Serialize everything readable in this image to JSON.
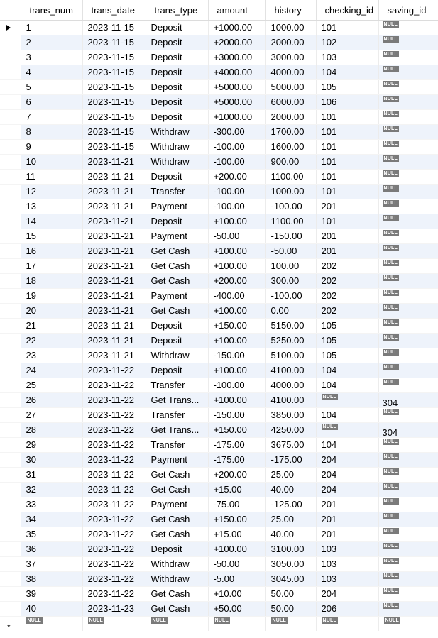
{
  "columns": [
    "trans_num",
    "trans_date",
    "trans_type",
    "amount",
    "history",
    "checking_id",
    "saving_id"
  ],
  "null_label": "NULL",
  "new_row_marker": "*",
  "rows": [
    [
      "1",
      "2023-11-15",
      "Deposit",
      "+1000.00",
      "1000.00",
      "101",
      null
    ],
    [
      "2",
      "2023-11-15",
      "Deposit",
      "+2000.00",
      "2000.00",
      "102",
      null
    ],
    [
      "3",
      "2023-11-15",
      "Deposit",
      "+3000.00",
      "3000.00",
      "103",
      null
    ],
    [
      "4",
      "2023-11-15",
      "Deposit",
      "+4000.00",
      "4000.00",
      "104",
      null
    ],
    [
      "5",
      "2023-11-15",
      "Deposit",
      "+5000.00",
      "5000.00",
      "105",
      null
    ],
    [
      "6",
      "2023-11-15",
      "Deposit",
      "+5000.00",
      "6000.00",
      "106",
      null
    ],
    [
      "7",
      "2023-11-15",
      "Deposit",
      "+1000.00",
      "2000.00",
      "101",
      null
    ],
    [
      "8",
      "2023-11-15",
      "Withdraw",
      "-300.00",
      "1700.00",
      "101",
      null
    ],
    [
      "9",
      "2023-11-15",
      "Withdraw",
      "-100.00",
      "1600.00",
      "101",
      null
    ],
    [
      "10",
      "2023-11-21",
      "Withdraw",
      "-100.00",
      "900.00",
      "101",
      null
    ],
    [
      "11",
      "2023-11-21",
      "Deposit",
      "+200.00",
      "1100.00",
      "101",
      null
    ],
    [
      "12",
      "2023-11-21",
      "Transfer",
      "-100.00",
      "1000.00",
      "101",
      null
    ],
    [
      "13",
      "2023-11-21",
      "Payment",
      "-100.00",
      "-100.00",
      "201",
      null
    ],
    [
      "14",
      "2023-11-21",
      "Deposit",
      "+100.00",
      "1100.00",
      "101",
      null
    ],
    [
      "15",
      "2023-11-21",
      "Payment",
      "-50.00",
      "-150.00",
      "201",
      null
    ],
    [
      "16",
      "2023-11-21",
      "Get Cash",
      "+100.00",
      "-50.00",
      "201",
      null
    ],
    [
      "17",
      "2023-11-21",
      "Get Cash",
      "+100.00",
      "100.00",
      "202",
      null
    ],
    [
      "18",
      "2023-11-21",
      "Get Cash",
      "+200.00",
      "300.00",
      "202",
      null
    ],
    [
      "19",
      "2023-11-21",
      "Payment",
      "-400.00",
      "-100.00",
      "202",
      null
    ],
    [
      "20",
      "2023-11-21",
      "Get Cash",
      "+100.00",
      "0.00",
      "202",
      null
    ],
    [
      "21",
      "2023-11-21",
      "Deposit",
      "+150.00",
      "5150.00",
      "105",
      null
    ],
    [
      "22",
      "2023-11-21",
      "Deposit",
      "+100.00",
      "5250.00",
      "105",
      null
    ],
    [
      "23",
      "2023-11-21",
      "Withdraw",
      "-150.00",
      "5100.00",
      "105",
      null
    ],
    [
      "24",
      "2023-11-22",
      "Deposit",
      "+100.00",
      "4100.00",
      "104",
      null
    ],
    [
      "25",
      "2023-11-22",
      "Transfer",
      "-100.00",
      "4000.00",
      "104",
      null
    ],
    [
      "26",
      "2023-11-22",
      "Get Trans...",
      "+100.00",
      "4100.00",
      null,
      "304"
    ],
    [
      "27",
      "2023-11-22",
      "Transfer",
      "-150.00",
      "3850.00",
      "104",
      null
    ],
    [
      "28",
      "2023-11-22",
      "Get Trans...",
      "+150.00",
      "4250.00",
      null,
      "304"
    ],
    [
      "29",
      "2023-11-22",
      "Transfer",
      "-175.00",
      "3675.00",
      "104",
      null
    ],
    [
      "30",
      "2023-11-22",
      "Payment",
      "-175.00",
      "-175.00",
      "204",
      null
    ],
    [
      "31",
      "2023-11-22",
      "Get Cash",
      "+200.00",
      "25.00",
      "204",
      null
    ],
    [
      "32",
      "2023-11-22",
      "Get Cash",
      "+15.00",
      "40.00",
      "204",
      null
    ],
    [
      "33",
      "2023-11-22",
      "Payment",
      "-75.00",
      "-125.00",
      "201",
      null
    ],
    [
      "34",
      "2023-11-22",
      "Get Cash",
      "+150.00",
      "25.00",
      "201",
      null
    ],
    [
      "35",
      "2023-11-22",
      "Get Cash",
      "+15.00",
      "40.00",
      "201",
      null
    ],
    [
      "36",
      "2023-11-22",
      "Deposit",
      "+100.00",
      "3100.00",
      "103",
      null
    ],
    [
      "37",
      "2023-11-22",
      "Withdraw",
      "-50.00",
      "3050.00",
      "103",
      null
    ],
    [
      "38",
      "2023-11-22",
      "Withdraw",
      "-5.00",
      "3045.00",
      "103",
      null
    ],
    [
      "39",
      "2023-11-22",
      "Get Cash",
      "+10.00",
      "50.00",
      "204",
      null
    ],
    [
      "40",
      "2023-11-23",
      "Get Cash",
      "+50.00",
      "50.00",
      "206",
      null
    ]
  ],
  "current_row_index": 0,
  "colors": {
    "alt_row": "#eef3fb",
    "null_badge_bg": "#7a7a7a",
    "null_badge_fg": "#ffffff"
  },
  "icons": {
    "current_row": "current-row-arrow-icon"
  }
}
